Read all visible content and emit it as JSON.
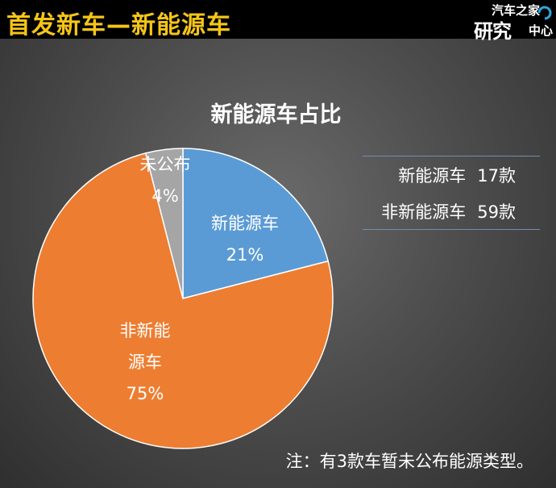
{
  "header": {
    "title": "首发新车—新能源车",
    "logo_top": "汽车之家",
    "logo_main": "研究",
    "logo_sub": "中心"
  },
  "chart_data": {
    "type": "pie",
    "title": "新能源车占比",
    "slices": [
      {
        "label": "新能源车",
        "label_lines": [
          "新能源车"
        ],
        "value": 21,
        "display": "21%",
        "color": "#5b9bd5"
      },
      {
        "label": "非新能源车",
        "label_lines": [
          "非新能",
          "源车"
        ],
        "value": 75,
        "display": "75%",
        "color": "#ed7d31"
      },
      {
        "label": "未公布",
        "label_lines": [
          "未公布"
        ],
        "value": 4,
        "display": "4%",
        "color": "#a5a5a5"
      }
    ],
    "legend": [
      {
        "label": "新能源车",
        "count": "17款"
      },
      {
        "label": "非新能源车",
        "count": "59款"
      }
    ],
    "legend_placement": "right"
  },
  "footnote": "注：有3款车暂未公布能源类型。"
}
